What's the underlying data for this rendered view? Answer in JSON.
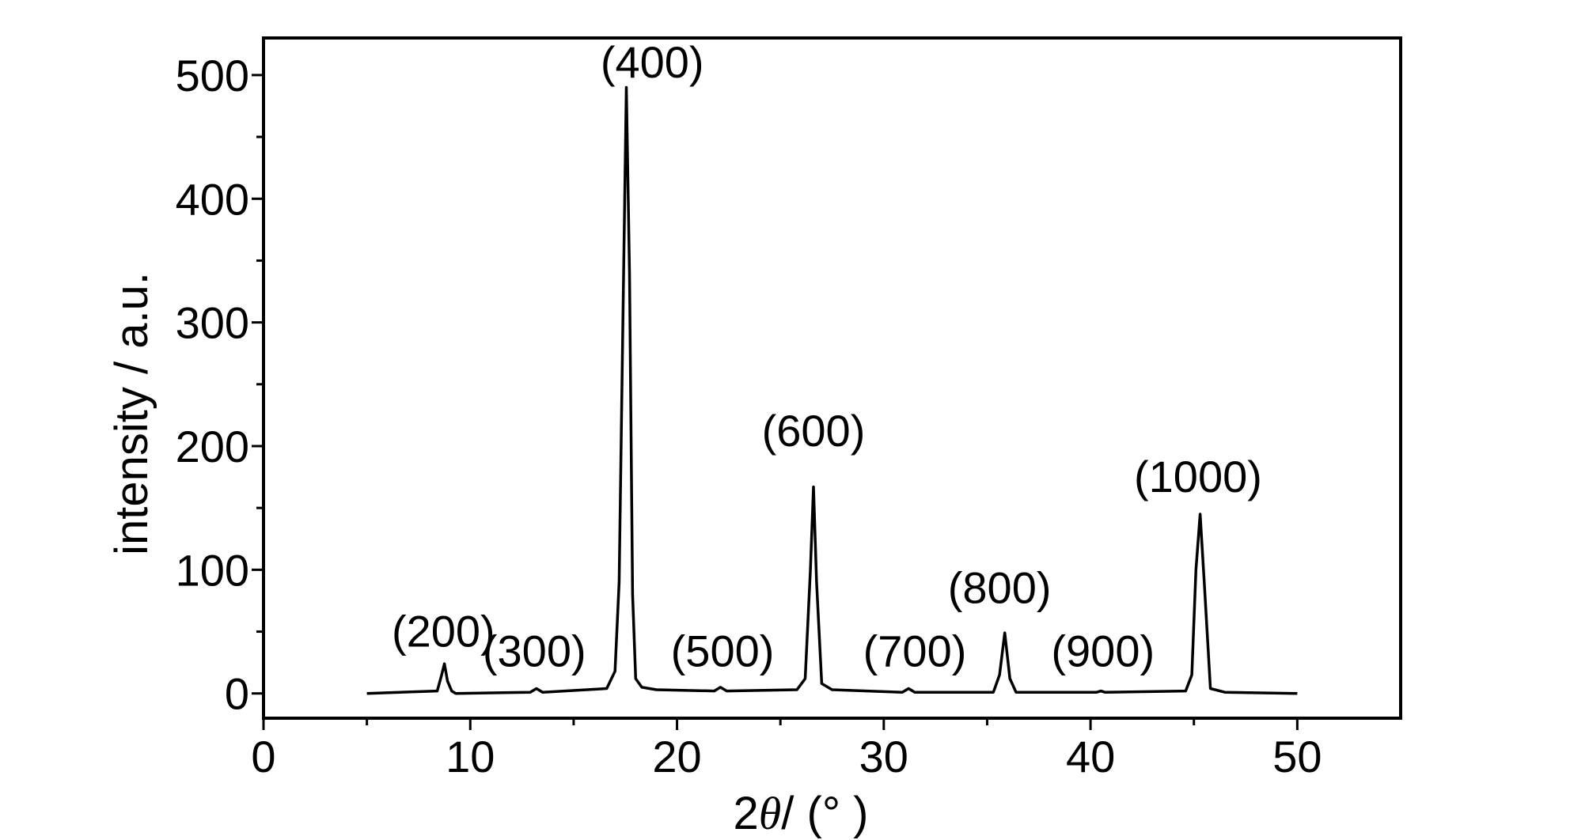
{
  "chart_data": {
    "type": "line",
    "title": "",
    "xlabel": {
      "prefix": "2",
      "symbol": "θ",
      "suffix": "/ (° )"
    },
    "ylabel": "intensity / a.u.",
    "xlim": [
      0,
      55
    ],
    "ylim": [
      -20,
      530
    ],
    "x_ticks": [
      0,
      10,
      20,
      30,
      40,
      50
    ],
    "x_tick_labels": [
      "0",
      "10",
      "20",
      "30",
      "40",
      "50"
    ],
    "y_ticks": [
      0,
      100,
      200,
      300,
      400,
      500
    ],
    "y_tick_labels": [
      "0",
      "100",
      "200",
      "300",
      "400",
      "500"
    ],
    "grid": false,
    "legend": "none",
    "series": [
      {
        "color": "#000000",
        "x": [
          5,
          8.4,
          8.6,
          8.75,
          8.9,
          9.1,
          9.3,
          12.9,
          13.2,
          13.5,
          16.6,
          17.0,
          17.2,
          17.4,
          17.55,
          17.7,
          17.85,
          18.0,
          18.3,
          19.0,
          21.8,
          22.1,
          22.4,
          25.8,
          26.2,
          26.45,
          26.6,
          26.75,
          27.0,
          27.5,
          30.9,
          31.2,
          31.5,
          35.3,
          35.6,
          35.85,
          36.1,
          36.4,
          40.3,
          40.5,
          40.7,
          44.6,
          44.9,
          45.1,
          45.3,
          45.5,
          45.8,
          46.5,
          50
        ],
        "y": [
          0,
          2,
          14,
          24,
          10,
          2,
          0,
          1,
          4,
          1,
          4,
          18,
          90,
          320,
          490,
          340,
          80,
          12,
          5,
          3,
          2,
          5,
          2,
          3,
          12,
          100,
          167,
          90,
          8,
          3,
          1,
          4,
          1,
          1,
          15,
          49,
          12,
          1,
          1,
          2,
          1,
          2,
          15,
          100,
          145,
          90,
          4,
          1,
          0
        ]
      }
    ],
    "annotations": [
      {
        "text": "(200)",
        "x": 8.7,
        "y": 38
      },
      {
        "text": "(300)",
        "x": 13.1,
        "y": 22
      },
      {
        "text": "(400)",
        "x": 18.8,
        "y": 498
      },
      {
        "text": "(500)",
        "x": 22.2,
        "y": 22
      },
      {
        "text": "(600)",
        "x": 26.6,
        "y": 200
      },
      {
        "text": "(700)",
        "x": 31.5,
        "y": 22
      },
      {
        "text": "(800)",
        "x": 35.6,
        "y": 73
      },
      {
        "text": "(900)",
        "x": 40.6,
        "y": 22
      },
      {
        "text": "(1000)",
        "x": 45.2,
        "y": 163
      }
    ]
  }
}
